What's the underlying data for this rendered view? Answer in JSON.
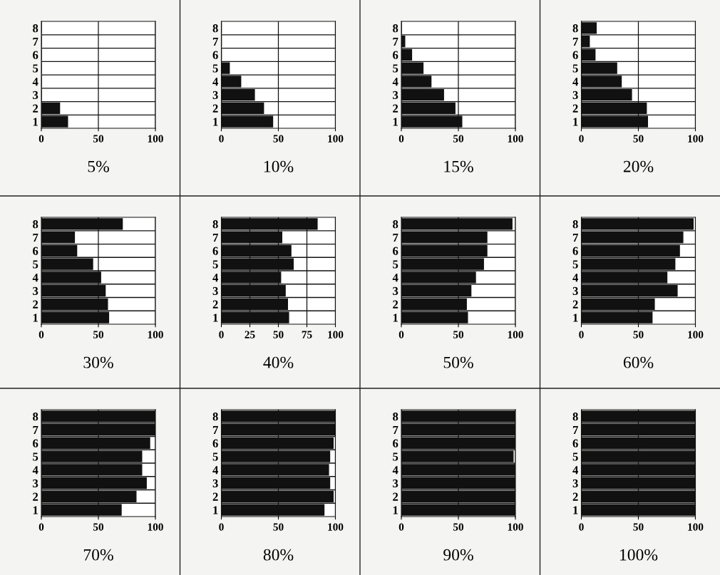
{
  "chart_data": [
    {
      "type": "bar",
      "orientation": "horizontal",
      "title": "5%",
      "categories": [
        "8",
        "7",
        "6",
        "5",
        "4",
        "3",
        "2",
        "1"
      ],
      "values": [
        0,
        0,
        0,
        0,
        0,
        0,
        16,
        23
      ],
      "color": "#111111",
      "xlim": [
        0,
        100
      ],
      "xticks": [
        0,
        50,
        100
      ],
      "grid": true
    },
    {
      "type": "bar",
      "orientation": "horizontal",
      "title": "10%",
      "categories": [
        "8",
        "7",
        "6",
        "5",
        "4",
        "3",
        "2",
        "1"
      ],
      "values": [
        0,
        0,
        0,
        7,
        17,
        29,
        37,
        45
      ],
      "color": "#111111",
      "xlim": [
        0,
        100
      ],
      "xticks": [
        0,
        50,
        100
      ],
      "grid": true
    },
    {
      "type": "bar",
      "orientation": "horizontal",
      "title": "15%",
      "categories": [
        "8",
        "7",
        "6",
        "5",
        "4",
        "3",
        "2",
        "1"
      ],
      "values": [
        0,
        3,
        9,
        19,
        26,
        37,
        47,
        53
      ],
      "color": "#111111",
      "xlim": [
        0,
        100
      ],
      "xticks": [
        0,
        50,
        100
      ],
      "grid": true
    },
    {
      "type": "bar",
      "orientation": "horizontal",
      "title": "20%",
      "categories": [
        "8",
        "7",
        "6",
        "5",
        "4",
        "3",
        "2",
        "1"
      ],
      "values": [
        13,
        7,
        12,
        31,
        35,
        44,
        57,
        58
      ],
      "color": "#111111",
      "xlim": [
        0,
        100
      ],
      "xticks": [
        0,
        50,
        100
      ],
      "grid": true
    },
    {
      "type": "bar",
      "orientation": "horizontal",
      "title": "30%",
      "categories": [
        "8",
        "7",
        "6",
        "5",
        "4",
        "3",
        "2",
        "1"
      ],
      "values": [
        71,
        29,
        31,
        45,
        52,
        56,
        58,
        59
      ],
      "color": "#111111",
      "xlim": [
        0,
        100
      ],
      "xticks": [
        0,
        50,
        100
      ],
      "grid": true
    },
    {
      "type": "bar",
      "orientation": "horizontal",
      "title": "40%",
      "categories": [
        "8",
        "7",
        "6",
        "5",
        "4",
        "3",
        "2",
        "1"
      ],
      "values": [
        84,
        53,
        61,
        63,
        52,
        56,
        58,
        59
      ],
      "color": "#111111",
      "xlim": [
        0,
        100
      ],
      "xticks": [
        0,
        25,
        50,
        75,
        100
      ],
      "grid": true
    },
    {
      "type": "bar",
      "orientation": "horizontal",
      "title": "50%",
      "categories": [
        "8",
        "7",
        "6",
        "5",
        "4",
        "3",
        "2",
        "1"
      ],
      "values": [
        97,
        75,
        75,
        72,
        65,
        61,
        57,
        58
      ],
      "color": "#111111",
      "xlim": [
        0,
        100
      ],
      "xticks": [
        0,
        50,
        100
      ],
      "grid": true
    },
    {
      "type": "bar",
      "orientation": "horizontal",
      "title": "60%",
      "categories": [
        "8",
        "7",
        "6",
        "5",
        "4",
        "3",
        "2",
        "1"
      ],
      "values": [
        98,
        89,
        86,
        82,
        75,
        84,
        64,
        62
      ],
      "color": "#111111",
      "xlim": [
        0,
        100
      ],
      "xticks": [
        0,
        50,
        100
      ],
      "grid": true
    },
    {
      "type": "bar",
      "orientation": "horizontal",
      "title": "70%",
      "categories": [
        "8",
        "7",
        "6",
        "5",
        "4",
        "3",
        "2",
        "1"
      ],
      "values": [
        100,
        100,
        95,
        88,
        88,
        92,
        83,
        70
      ],
      "color": "#111111",
      "xlim": [
        0,
        100
      ],
      "xticks": [
        0,
        50,
        100
      ],
      "grid": true
    },
    {
      "type": "bar",
      "orientation": "horizontal",
      "title": "80%",
      "categories": [
        "8",
        "7",
        "6",
        "5",
        "4",
        "3",
        "2",
        "1"
      ],
      "values": [
        100,
        100,
        98,
        95,
        94,
        95,
        98,
        90
      ],
      "color": "#111111",
      "xlim": [
        0,
        100
      ],
      "xticks": [
        0,
        50,
        100
      ],
      "grid": true
    },
    {
      "type": "bar",
      "orientation": "horizontal",
      "title": "90%",
      "categories": [
        "8",
        "7",
        "6",
        "5",
        "4",
        "3",
        "2",
        "1"
      ],
      "values": [
        100,
        100,
        100,
        98,
        100,
        100,
        100,
        100
      ],
      "color": "#111111",
      "xlim": [
        0,
        100
      ],
      "xticks": [
        0,
        50,
        100
      ],
      "grid": true
    },
    {
      "type": "bar",
      "orientation": "horizontal",
      "title": "100%",
      "categories": [
        "8",
        "7",
        "6",
        "5",
        "4",
        "3",
        "2",
        "1"
      ],
      "values": [
        100,
        100,
        100,
        100,
        100,
        100,
        100,
        100
      ],
      "color": "#111111",
      "xlim": [
        0,
        100
      ],
      "xticks": [
        0,
        50,
        100
      ],
      "grid": true
    }
  ]
}
